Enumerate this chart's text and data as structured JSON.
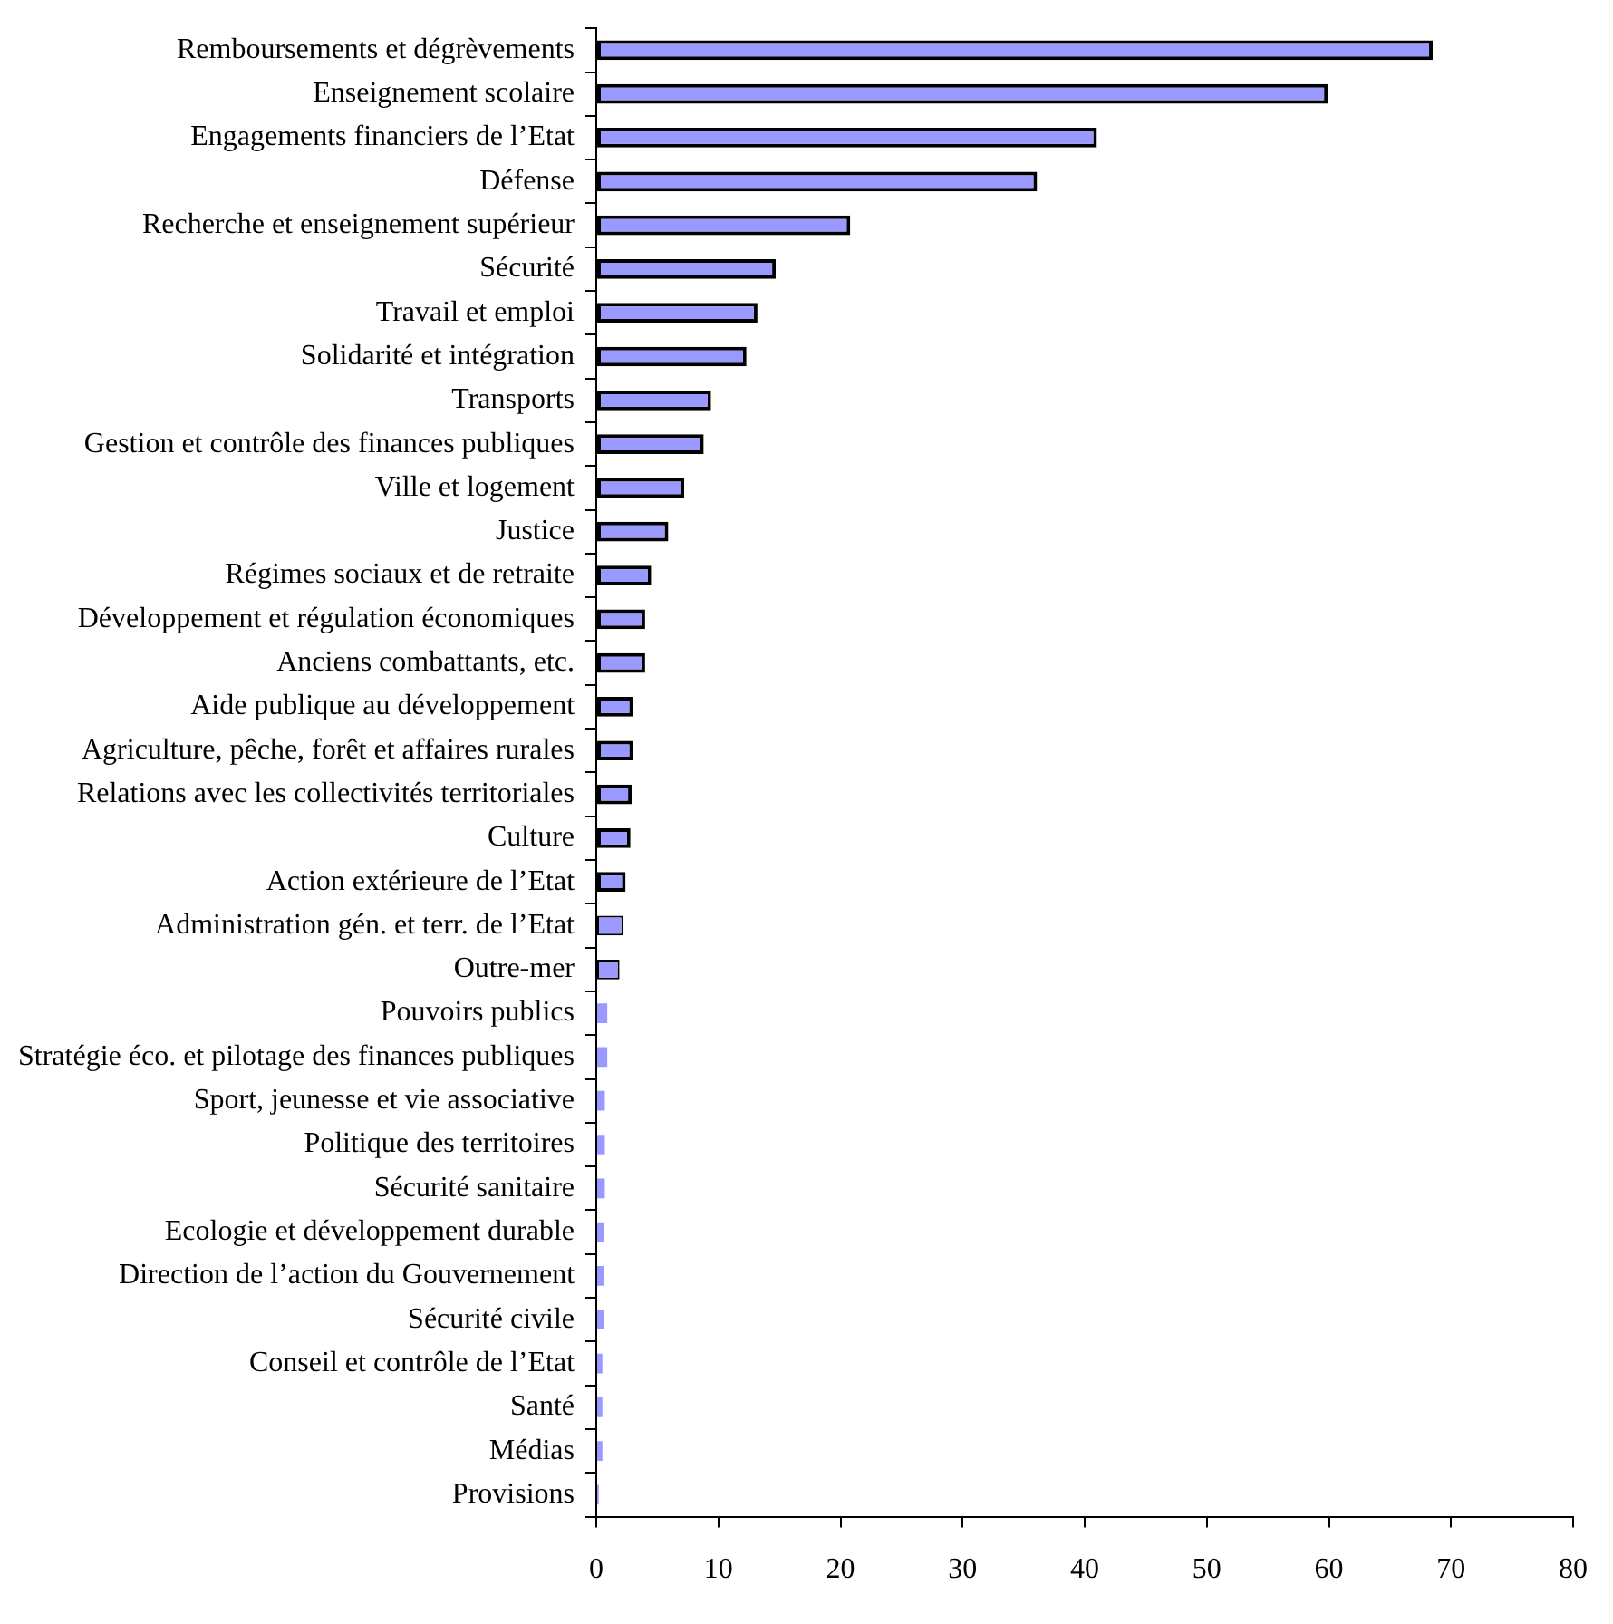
{
  "chart_data": {
    "type": "bar",
    "orientation": "horizontal",
    "grid": false,
    "legend": false,
    "color": "#9999ff",
    "categories": [
      "Remboursements et dégrèvements",
      "Enseignement scolaire",
      "Engagements financiers de l’Etat",
      "Défense",
      "Recherche et enseignement supérieur",
      "Sécurité",
      "Travail et emploi",
      "Solidarité et intégration",
      "Transports",
      "Gestion et contrôle des finances publiques",
      "Ville et logement",
      "Justice",
      "Régimes sociaux et de retraite",
      "Développement et régulation économiques",
      "Anciens combattants, etc.",
      "Aide publique au développement",
      "Agriculture, pêche, forêt et affaires rurales",
      "Relations avec les collectivités territoriales",
      "Culture",
      "Action extérieure de l’Etat",
      "Administration gén. et terr. de l’Etat",
      "Outre-mer",
      "Pouvoirs publics",
      "Stratégie éco. et pilotage des finances publiques",
      "Sport, jeunesse et vie associative",
      "Politique des territoires",
      "Sécurité sanitaire",
      "Ecologie et développement durable",
      "Direction de l’action du Gouvernement",
      "Sécurité civile",
      "Conseil et contrôle de l’Etat",
      "Santé",
      "Médias",
      "Provisions"
    ],
    "values": [
      68.5,
      59.9,
      41.0,
      36.1,
      20.8,
      14.7,
      13.2,
      12.3,
      9.4,
      8.8,
      7.2,
      5.9,
      4.5,
      4.0,
      4.0,
      3.0,
      3.0,
      2.9,
      2.8,
      2.4,
      2.2,
      1.9,
      0.9,
      0.9,
      0.7,
      0.7,
      0.7,
      0.6,
      0.6,
      0.6,
      0.5,
      0.5,
      0.5,
      0.2
    ],
    "xlim": [
      0,
      80
    ],
    "xticks": [
      0,
      10,
      20,
      30,
      40,
      50,
      60,
      70,
      80
    ]
  }
}
